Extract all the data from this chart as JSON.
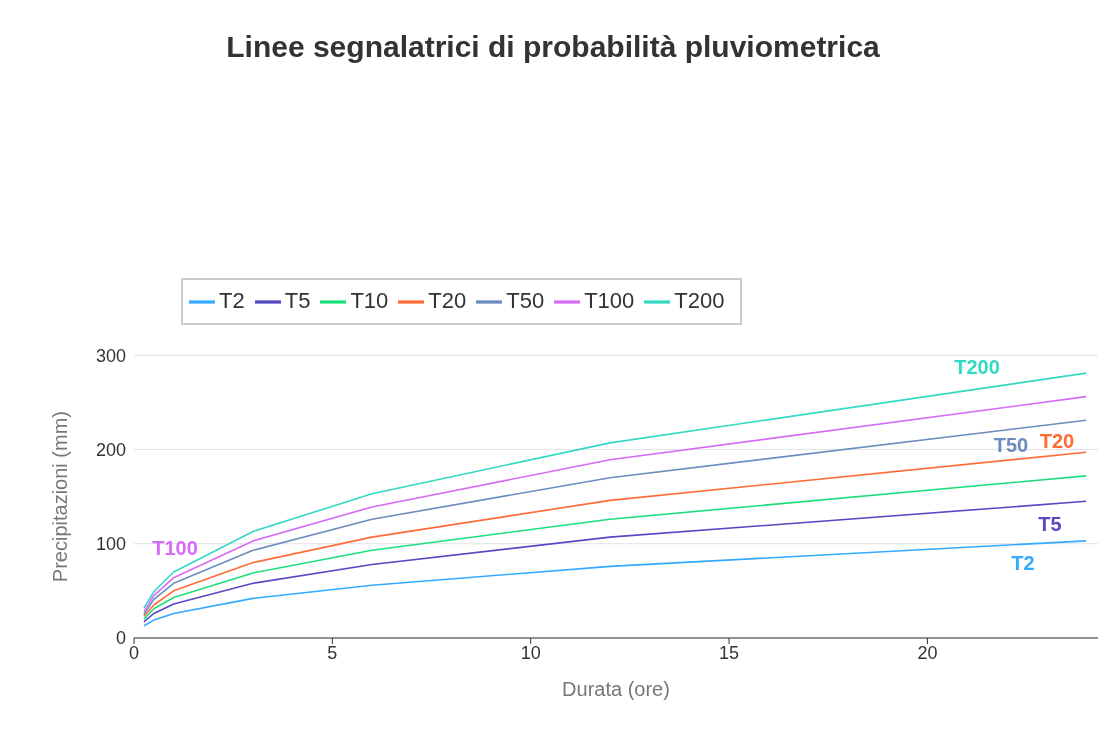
{
  "chart_data": {
    "type": "line",
    "title": "Linee segnalatrici di probabilità pluviometrica",
    "xlabel": "Durata (ore)",
    "ylabel": "Precipitazioni (mm)",
    "x": [
      0.25,
      0.5,
      1,
      3,
      6,
      12,
      24
    ],
    "series": [
      {
        "name": "T2",
        "color": "#33aaff",
        "values": [
          13,
          19,
          26,
          42,
          56,
          76,
          103
        ]
      },
      {
        "name": "T5",
        "color": "#5549c4",
        "values": [
          17,
          26,
          36,
          58,
          78,
          107,
          145
        ]
      },
      {
        "name": "T10",
        "color": "#1be07a",
        "values": [
          20,
          31,
          43,
          69,
          93,
          126,
          172
        ]
      },
      {
        "name": "T20",
        "color": "#ff6b35",
        "values": [
          23,
          35,
          50,
          80,
          107,
          146,
          197
        ]
      },
      {
        "name": "T50",
        "color": "#6b8cbe",
        "values": [
          25,
          41,
          58,
          93,
          126,
          170,
          231
        ]
      },
      {
        "name": "T100",
        "color": "#d66bf5",
        "values": [
          28,
          45,
          64,
          103,
          139,
          189,
          256
        ]
      },
      {
        "name": "T200",
        "color": "#33d9c4",
        "values": [
          32,
          49,
          70,
          113,
          153,
          207,
          281
        ]
      }
    ],
    "annotations": [
      "T200",
      "T100",
      "T50",
      "T20",
      "T5",
      "T2"
    ],
    "xlim": [
      0,
      24.3
    ],
    "xticks": [
      0,
      5,
      10,
      15,
      20
    ],
    "ylim": [
      0,
      300
    ],
    "yticks": [
      0,
      100,
      200,
      300
    ],
    "grid": "y",
    "legend": "top",
    "marker": "none",
    "line_style": "solid"
  }
}
